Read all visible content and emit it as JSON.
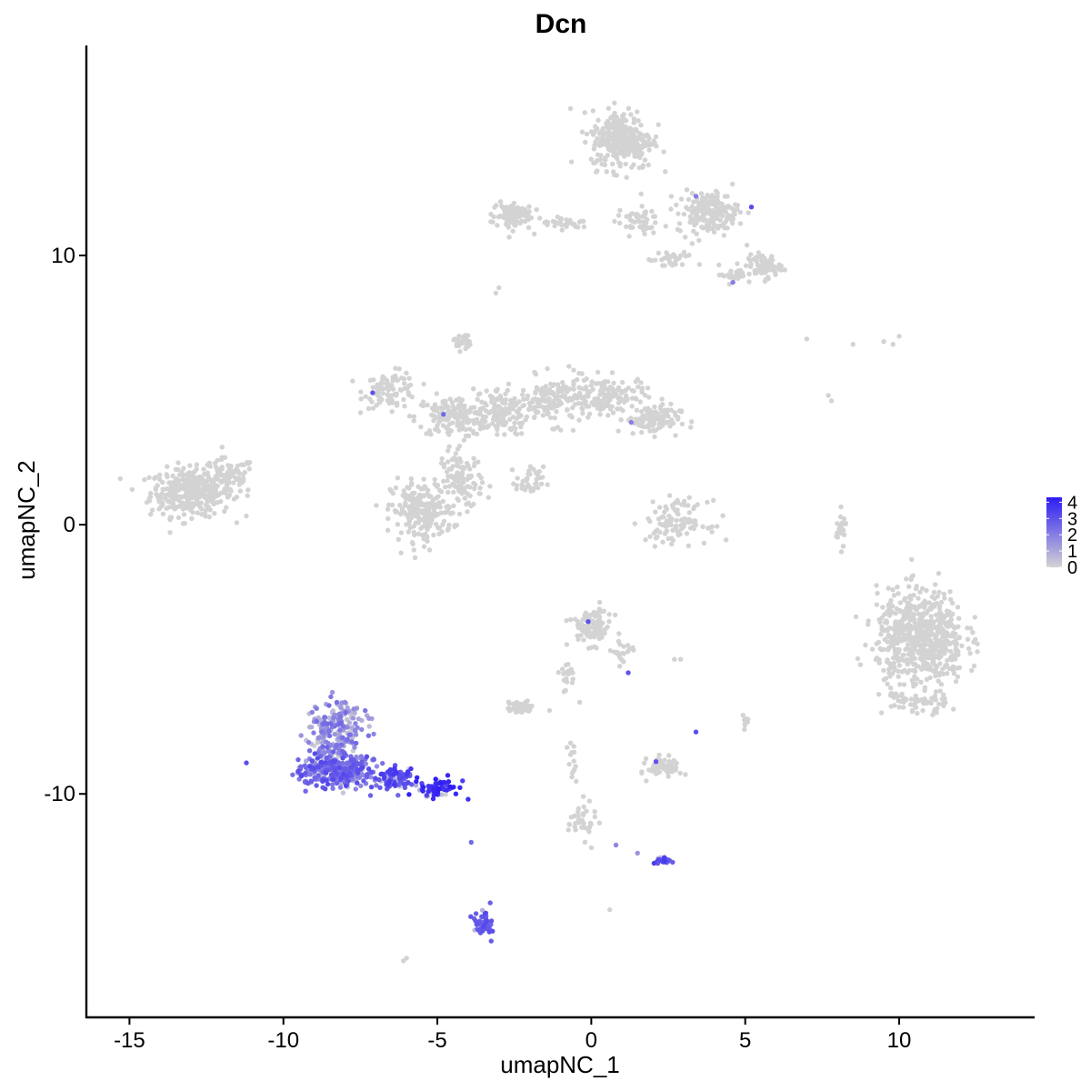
{
  "chart_data": {
    "type": "scatter",
    "title": "Dcn",
    "xlabel": "umapNC_1",
    "ylabel": "umapNC_2",
    "xlim": [
      -16.4,
      14.4
    ],
    "ylim": [
      -18.3,
      17.8
    ],
    "x_ticks": [
      -15,
      -10,
      -5,
      0,
      5,
      10
    ],
    "x_tick_labels": [
      "-15",
      "-10",
      "-5",
      "0",
      "5",
      "10"
    ],
    "y_ticks": [
      -10,
      0,
      10
    ],
    "y_tick_labels": [
      "-10",
      "0",
      "10"
    ],
    "grid": false,
    "color_scale": {
      "low": "#d3d3d3",
      "high": "#2d1cf4",
      "min": 0,
      "max": 4.3,
      "ticks": [
        0,
        1,
        2,
        3,
        4
      ],
      "tick_labels": [
        "0",
        "1",
        "2",
        "3",
        "4"
      ],
      "placement": "right"
    },
    "clusters": [
      {
        "cx": -13.0,
        "cy": 1.2,
        "sx": 1.2,
        "sy": 0.8,
        "n": 350,
        "expr": [
          0,
          0
        ]
      },
      {
        "cx": -11.8,
        "cy": 1.8,
        "sx": 0.8,
        "sy": 0.6,
        "n": 80,
        "expr": [
          0,
          0
        ]
      },
      {
        "cx": -6.5,
        "cy": 5.0,
        "sx": 0.8,
        "sy": 0.6,
        "n": 90,
        "expr": [
          0,
          0
        ]
      },
      {
        "cx": -4.5,
        "cy": 4.0,
        "sx": 1.1,
        "sy": 0.7,
        "n": 150,
        "expr": [
          0,
          0
        ]
      },
      {
        "cx": -3.0,
        "cy": 4.2,
        "sx": 0.9,
        "sy": 0.8,
        "n": 140,
        "expr": [
          0,
          0
        ]
      },
      {
        "cx": -4.2,
        "cy": 6.8,
        "sx": 0.25,
        "sy": 0.3,
        "n": 25,
        "expr": [
          0,
          0
        ]
      },
      {
        "cx": -5.5,
        "cy": 0.5,
        "sx": 0.9,
        "sy": 1.0,
        "n": 220,
        "expr": [
          0,
          0
        ]
      },
      {
        "cx": -4.2,
        "cy": 1.6,
        "sx": 0.6,
        "sy": 1.0,
        "n": 110,
        "expr": [
          0,
          0
        ]
      },
      {
        "cx": -1.2,
        "cy": 4.6,
        "sx": 1.0,
        "sy": 0.8,
        "n": 140,
        "expr": [
          0,
          0
        ]
      },
      {
        "cx": 0.5,
        "cy": 4.8,
        "sx": 1.1,
        "sy": 0.6,
        "n": 140,
        "expr": [
          0,
          0
        ]
      },
      {
        "cx": 2.0,
        "cy": 3.9,
        "sx": 0.8,
        "sy": 0.5,
        "n": 100,
        "expr": [
          0,
          0
        ]
      },
      {
        "cx": -2.0,
        "cy": 1.6,
        "sx": 0.4,
        "sy": 0.5,
        "n": 35,
        "expr": [
          0,
          0
        ]
      },
      {
        "cx": 1.0,
        "cy": 14.3,
        "sx": 0.9,
        "sy": 1.0,
        "n": 300,
        "expr": [
          0,
          0
        ]
      },
      {
        "cx": 3.8,
        "cy": 11.6,
        "sx": 0.9,
        "sy": 0.7,
        "n": 180,
        "expr": [
          0,
          0
        ]
      },
      {
        "cx": 5.6,
        "cy": 9.6,
        "sx": 0.5,
        "sy": 0.4,
        "n": 70,
        "expr": [
          0,
          0
        ]
      },
      {
        "cx": -2.6,
        "cy": 11.5,
        "sx": 0.6,
        "sy": 0.5,
        "n": 90,
        "expr": [
          0,
          0
        ]
      },
      {
        "cx": -0.8,
        "cy": 11.2,
        "sx": 0.8,
        "sy": 0.2,
        "n": 30,
        "expr": [
          0,
          0
        ]
      },
      {
        "cx": 1.5,
        "cy": 11.3,
        "sx": 0.6,
        "sy": 0.5,
        "n": 50,
        "expr": [
          0,
          0
        ]
      },
      {
        "cx": 2.6,
        "cy": 9.8,
        "sx": 0.7,
        "sy": 0.3,
        "n": 30,
        "expr": [
          0,
          0
        ]
      },
      {
        "cx": 4.6,
        "cy": 9.3,
        "sx": 0.4,
        "sy": 0.3,
        "n": 25,
        "expr": [
          0,
          0
        ]
      },
      {
        "cx": 10.7,
        "cy": -4.2,
        "sx": 1.3,
        "sy": 1.6,
        "n": 650,
        "expr": [
          0,
          0
        ]
      },
      {
        "cx": 2.8,
        "cy": 0.1,
        "sx": 0.9,
        "sy": 0.7,
        "n": 110,
        "expr": [
          0,
          0
        ]
      },
      {
        "cx": 0.0,
        "cy": -3.8,
        "sx": 0.6,
        "sy": 0.6,
        "n": 100,
        "expr": [
          0,
          0
        ]
      },
      {
        "cx": 1.0,
        "cy": -4.8,
        "sx": 0.3,
        "sy": 0.5,
        "n": 20,
        "expr": [
          0,
          0
        ]
      },
      {
        "cx": -0.8,
        "cy": -5.6,
        "sx": 0.3,
        "sy": 0.6,
        "n": 20,
        "expr": [
          0,
          0
        ]
      },
      {
        "cx": -2.3,
        "cy": -6.8,
        "sx": 0.4,
        "sy": 0.2,
        "n": 45,
        "expr": [
          0,
          0
        ]
      },
      {
        "cx": 2.4,
        "cy": -9.0,
        "sx": 0.5,
        "sy": 0.35,
        "n": 70,
        "expr": [
          0,
          0
        ]
      },
      {
        "cx": 5.0,
        "cy": -7.3,
        "sx": 0.12,
        "sy": 0.2,
        "n": 12,
        "expr": [
          0,
          0
        ]
      },
      {
        "cx": 8.1,
        "cy": -0.2,
        "sx": 0.15,
        "sy": 0.6,
        "n": 25,
        "expr": [
          0,
          0
        ]
      },
      {
        "cx": -0.3,
        "cy": -11.0,
        "sx": 0.4,
        "sy": 0.6,
        "n": 35,
        "expr": [
          0,
          0
        ]
      },
      {
        "cx": -0.6,
        "cy": -8.8,
        "sx": 0.15,
        "sy": 0.8,
        "n": 14,
        "expr": [
          0,
          0
        ]
      },
      {
        "cx": 10.5,
        "cy": -6.6,
        "sx": 1.0,
        "sy": 0.4,
        "n": 60,
        "expr": [
          0,
          0
        ]
      },
      {
        "cx": -8.3,
        "cy": -7.5,
        "sx": 0.8,
        "sy": 0.9,
        "n": 200,
        "expr": [
          0.3,
          2.5
        ]
      },
      {
        "cx": -8.3,
        "cy": -9.1,
        "sx": 1.1,
        "sy": 0.6,
        "n": 350,
        "expr": [
          1.5,
          3.3
        ]
      },
      {
        "cx": -6.3,
        "cy": -9.4,
        "sx": 0.6,
        "sy": 0.35,
        "n": 80,
        "expr": [
          2.5,
          3.7
        ]
      },
      {
        "cx": -5.0,
        "cy": -9.8,
        "sx": 0.6,
        "sy": 0.3,
        "n": 70,
        "expr": [
          3.3,
          4.3
        ]
      },
      {
        "cx": -3.5,
        "cy": -14.8,
        "sx": 0.25,
        "sy": 0.5,
        "n": 45,
        "expr": [
          2.5,
          3.3
        ]
      },
      {
        "cx": 2.3,
        "cy": -12.5,
        "sx": 0.25,
        "sy": 0.12,
        "n": 28,
        "expr": [
          2.5,
          3.6
        ]
      }
    ],
    "extra_points": [
      {
        "x": -7.1,
        "y": 4.9,
        "v": 3.0
      },
      {
        "x": -4.8,
        "y": 4.1,
        "v": 2.5
      },
      {
        "x": 1.3,
        "y": 3.8,
        "v": 2.0
      },
      {
        "x": 5.2,
        "y": 11.8,
        "v": 3.2
      },
      {
        "x": 3.4,
        "y": 12.2,
        "v": 2.0
      },
      {
        "x": 4.6,
        "y": 9.0,
        "v": 2.0
      },
      {
        "x": -0.1,
        "y": -3.6,
        "v": 3.0
      },
      {
        "x": 1.2,
        "y": -5.5,
        "v": 3.0
      },
      {
        "x": 3.4,
        "y": -7.7,
        "v": 3.2
      },
      {
        "x": 2.1,
        "y": -8.8,
        "v": 3.0
      },
      {
        "x": -3.9,
        "y": -11.8,
        "v": 2.5
      },
      {
        "x": 0.8,
        "y": -11.9,
        "v": 1.8
      },
      {
        "x": 1.5,
        "y": -12.2,
        "v": 1.5
      },
      {
        "x": -4.0,
        "y": -10.2,
        "v": 3.8
      },
      {
        "x": -4.4,
        "y": -10.0,
        "v": 4.0
      },
      {
        "x": 7.0,
        "y": 6.9,
        "v": 0
      },
      {
        "x": 8.5,
        "y": 6.7,
        "v": 0
      },
      {
        "x": 9.5,
        "y": 6.8,
        "v": 0
      },
      {
        "x": 10.0,
        "y": 7.0,
        "v": 0
      },
      {
        "x": 9.8,
        "y": 6.7,
        "v": 0
      },
      {
        "x": 7.7,
        "y": 4.8,
        "v": 0
      },
      {
        "x": 7.8,
        "y": 4.6,
        "v": 0
      },
      {
        "x": -3.0,
        "y": 8.8,
        "v": 0
      },
      {
        "x": -3.1,
        "y": 8.6,
        "v": 0
      },
      {
        "x": -6.1,
        "y": -16.2,
        "v": 0
      },
      {
        "x": -6.0,
        "y": -16.1,
        "v": 0
      },
      {
        "x": 0.6,
        "y": -14.3,
        "v": 0
      },
      {
        "x": 2.7,
        "y": -5.0,
        "v": 0
      },
      {
        "x": 2.9,
        "y": -5.0,
        "v": 0
      },
      {
        "x": 0.0,
        "y": -12.0,
        "v": 0
      }
    ]
  }
}
